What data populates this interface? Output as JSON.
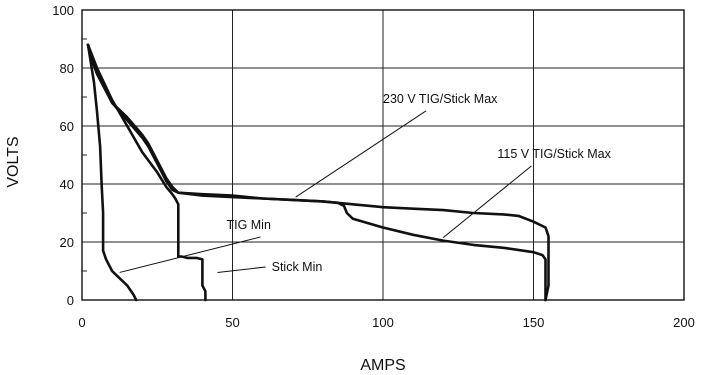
{
  "chart_data": {
    "type": "line",
    "title": "",
    "xlabel": "AMPS",
    "ylabel": "VOLTS",
    "xlim": [
      0,
      200
    ],
    "ylim": [
      0,
      100
    ],
    "xticks": [
      0,
      50,
      100,
      150,
      200
    ],
    "yticks": [
      0,
      20,
      40,
      60,
      80,
      100
    ],
    "grid": true,
    "legend": "none",
    "colors": {
      "line": "#111111",
      "grid": "#222222",
      "text": "#111111",
      "background": "#ffffff"
    },
    "series": [
      {
        "name": "230 V TIG/Stick Max",
        "x": [
          2,
          3,
          5,
          8,
          10,
          15,
          20,
          22,
          25,
          28,
          30,
          32,
          40,
          50,
          60,
          70,
          80,
          90,
          100,
          110,
          120,
          130,
          140,
          145,
          150,
          154,
          155,
          155,
          155,
          154
        ],
        "y": [
          88,
          84,
          78,
          72,
          68,
          63,
          57,
          54,
          48,
          42,
          39,
          37,
          36.5,
          36,
          35,
          34.5,
          34,
          33,
          32,
          31.5,
          31,
          30,
          29.5,
          29,
          27,
          25,
          22,
          15,
          5,
          0
        ]
      },
      {
        "name": "115 V TIG/Stick Max",
        "x": [
          2,
          3,
          5,
          8,
          10,
          15,
          20,
          22,
          25,
          28,
          30,
          32,
          40,
          50,
          60,
          70,
          80,
          85,
          87,
          88,
          90,
          100,
          110,
          120,
          130,
          140,
          150,
          153,
          154,
          154,
          154
        ],
        "y": [
          88,
          84,
          78,
          72,
          68,
          62,
          56,
          53,
          47,
          41,
          38,
          37,
          36,
          35.5,
          35,
          34.5,
          34,
          33.5,
          32.5,
          30,
          28,
          25,
          22.5,
          20.5,
          19,
          18,
          16.5,
          15.5,
          14,
          5,
          0
        ]
      },
      {
        "name": "TIG Min",
        "x": [
          2,
          4,
          5,
          6,
          6.5,
          7,
          7,
          7,
          8,
          9,
          10,
          11,
          12,
          13,
          14,
          15,
          16,
          17,
          18
        ],
        "y": [
          88,
          75,
          65,
          53,
          40,
          30,
          20,
          17,
          14,
          12,
          10,
          9,
          8,
          7,
          6,
          5,
          3.5,
          2,
          0
        ]
      },
      {
        "name": "Stick Min",
        "x": [
          2,
          5,
          10,
          15,
          20,
          25,
          28,
          30,
          31,
          32,
          32,
          32,
          33,
          35,
          38,
          40,
          40,
          41,
          41
        ],
        "y": [
          88,
          80,
          69,
          60,
          51,
          44,
          39,
          36.5,
          35,
          33,
          30,
          15,
          15,
          14.5,
          14.5,
          14,
          5,
          3,
          0
        ]
      }
    ],
    "annotations": [
      {
        "text": "230 V TIG/Stick Max",
        "target": [
          71,
          35.5
        ],
        "anchor": [
          115,
          68
        ]
      },
      {
        "text": "115 V TIG/Stick Max",
        "target": [
          120,
          21.5
        ],
        "anchor": [
          150,
          49
        ]
      },
      {
        "text": "TIG Min",
        "target": [
          12.5,
          9.5
        ],
        "anchor": [
          60,
          24.5
        ]
      },
      {
        "text": "Stick Min",
        "target": [
          45,
          9.5
        ],
        "anchor": [
          63,
          10
        ]
      }
    ]
  }
}
